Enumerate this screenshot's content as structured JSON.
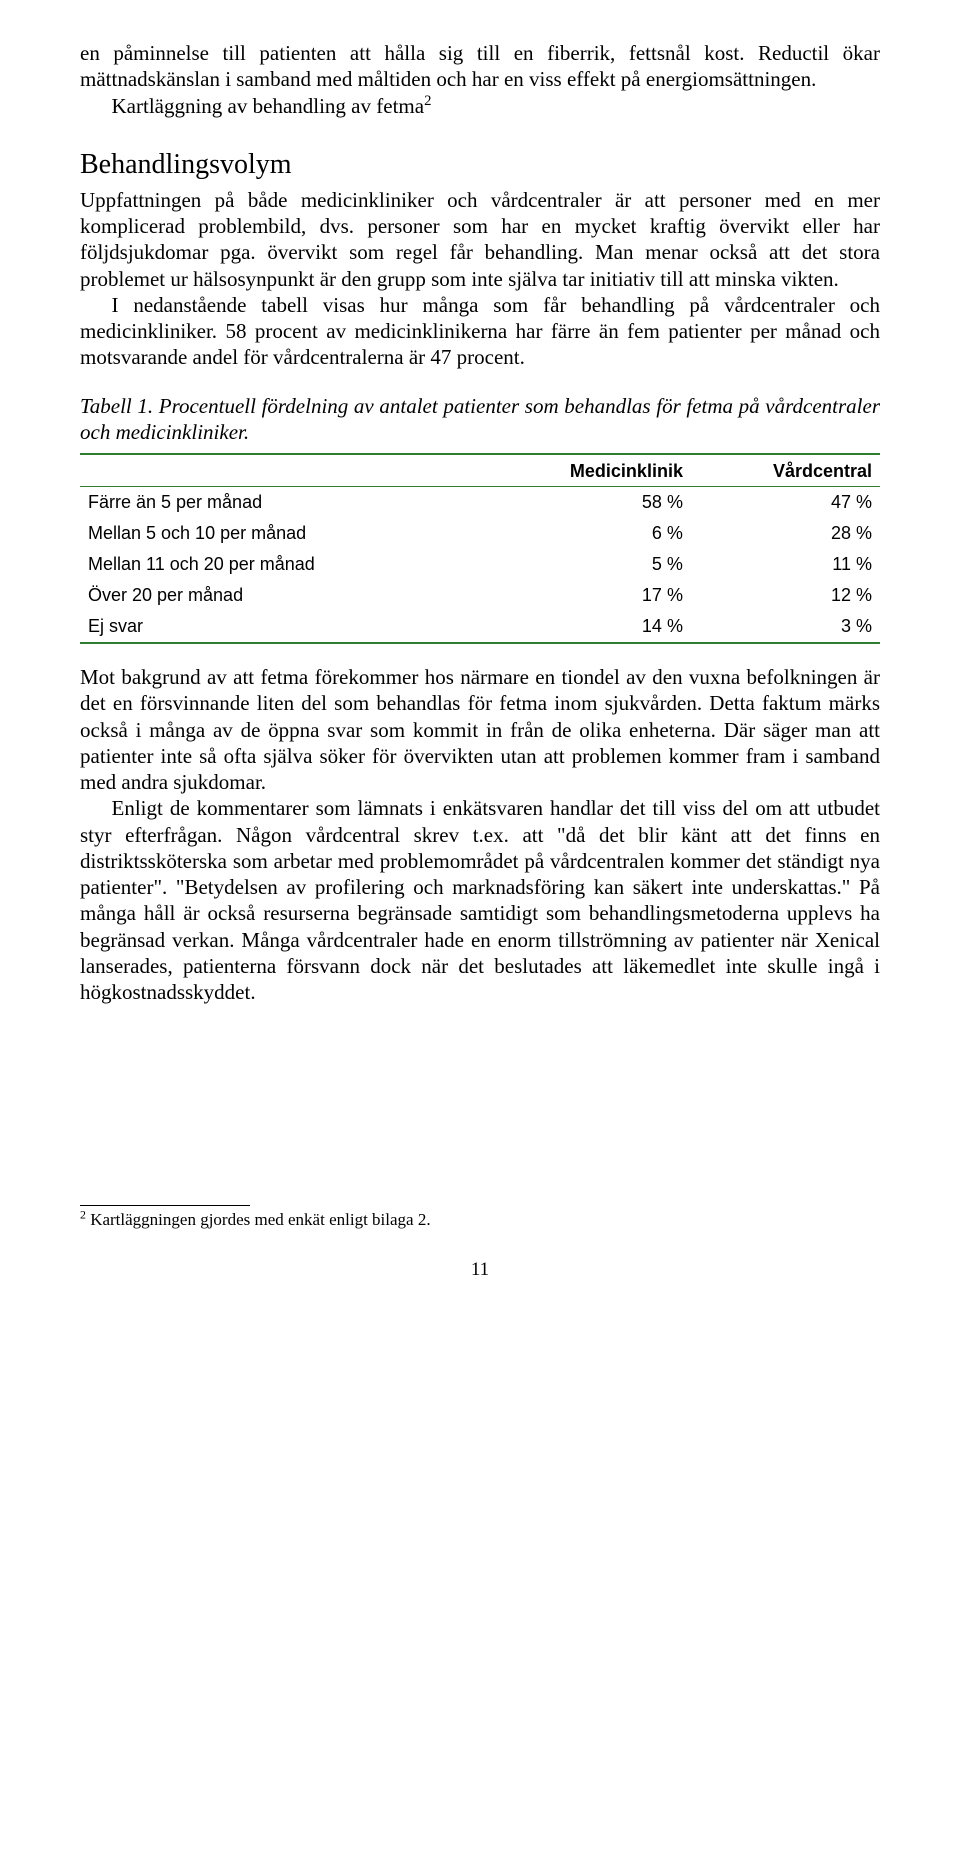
{
  "intro": {
    "p1": "en påminnelse till patienten att hålla sig till en fiberrik, fettsnål kost. Reductil ökar mättnadskänslan i samband med måltiden och har en viss effekt på energiomsättningen.",
    "p2_prefix": "Kartläggning av behandling av fetma",
    "p2_sup": "2"
  },
  "section": {
    "title": "Behandlingsvolym",
    "p1": "Uppfattningen på både medicinkliniker och vårdcentraler är att personer med en mer komplicerad problembild, dvs. personer som har en mycket kraftig övervikt eller har följdsjukdomar pga. övervikt som regel får behandling. Man menar också att det stora problemet ur hälsosynpunkt är den grupp som inte själva tar initiativ till att minska vikten.",
    "p2": "I nedanstående tabell visas hur många som får behandling på vårdcentraler och medicinkliniker. 58 procent av medicinklinikerna har färre än fem patienter per månad och motsvarande andel för vårdcentralerna är 47 procent."
  },
  "table": {
    "caption": "Tabell 1. Procentuell fördelning av antalet patienter som behandlas för fetma på vårdcentraler och medicinkliniker.",
    "columns": [
      "",
      "Medicinklinik",
      "Vårdcentral"
    ],
    "rows": [
      [
        "Färre än 5 per månad",
        "58 %",
        "47 %"
      ],
      [
        "Mellan 5 och 10 per månad",
        "6 %",
        "28 %"
      ],
      [
        "Mellan 11 och 20 per månad",
        "5 %",
        "11 %"
      ],
      [
        "Över 20 per månad",
        "17 %",
        "12 %"
      ],
      [
        "Ej svar",
        "14 %",
        "3 %"
      ]
    ],
    "border_color": "#2e7d32"
  },
  "after": {
    "p1": "Mot bakgrund av att fetma förekommer hos närmare en tiondel av den vuxna befolkningen är det en försvinnande liten del som behandlas för fetma inom sjukvården. Detta faktum märks också i många av de öppna svar som kommit in från de olika enheterna. Där säger man att patienter inte så ofta själva söker för övervikten utan att problemen kommer fram i samband med andra sjukdomar.",
    "p2": "Enligt de kommentarer som lämnats i enkätsvaren handlar det till viss del om att utbudet styr efterfrågan. Någon vårdcentral skrev t.ex. att \"då det blir känt att det finns en distriktssköterska som arbetar med problemområdet på vårdcentralen kommer det ständigt nya patienter\". \"Betydelsen av profilering och marknadsföring kan säkert inte underskattas.\" På många håll är också resurserna begränsade samtidigt som behandlingsmetoderna upplevs ha begränsad verkan. Många vårdcentraler hade en enorm tillströmning av patienter när Xenical lanserades, patienterna försvann dock när det beslutades att läkemedlet inte skulle ingå i högkostnadsskyddet."
  },
  "footnote": {
    "marker": "2",
    "text": " Kartläggningen gjordes med enkät enligt bilaga 2."
  },
  "page_number": "11"
}
